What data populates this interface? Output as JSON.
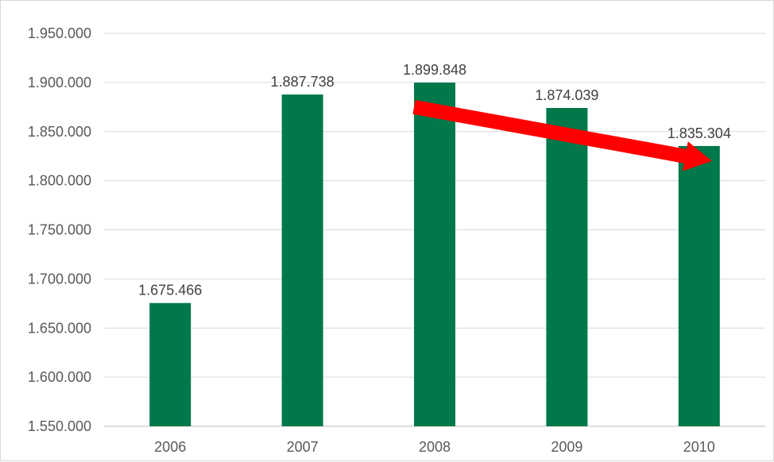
{
  "chart_data": {
    "type": "bar",
    "categories": [
      "2006",
      "2007",
      "2008",
      "2009",
      "2010"
    ],
    "values": [
      1675466,
      1887738,
      1899848,
      1874039,
      1835304
    ],
    "value_labels": [
      "1.675.466",
      "1.887.738",
      "1.899.848",
      "1.874.039",
      "1.835.304"
    ],
    "ylim": [
      1550000,
      1950000
    ],
    "y_ticks": [
      1550000,
      1600000,
      1650000,
      1700000,
      1750000,
      1800000,
      1850000,
      1900000,
      1950000
    ],
    "y_tick_labels": [
      "1.550.000",
      "1.600.000",
      "1.650.000",
      "1.700.000",
      "1.750.000",
      "1.800.000",
      "1.850.000",
      "1.900.000",
      "1.950.000"
    ],
    "grid": true,
    "legend": "none",
    "title": "",
    "xlabel": "",
    "ylabel": "",
    "bar_color": "#00784a",
    "annotation": {
      "type": "arrow",
      "color": "#ff0000",
      "from": {
        "x": "2008",
        "y": 1875000
      },
      "to": {
        "x": "2010",
        "y": 1820000
      }
    }
  }
}
